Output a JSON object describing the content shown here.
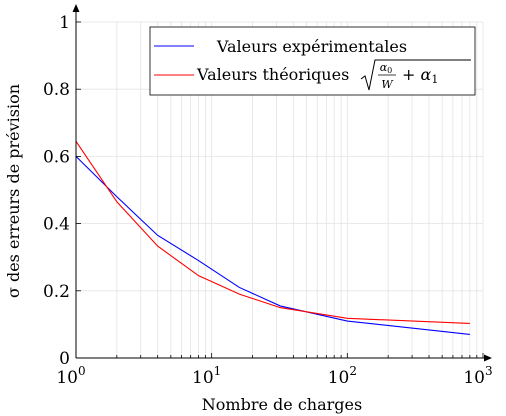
{
  "chart_data": {
    "type": "line",
    "xlabel": "Nombre de charges",
    "ylabel": "σ des erreurs de prévision",
    "xscale": "log",
    "xlim": [
      1,
      1000
    ],
    "ylim": [
      0,
      1
    ],
    "grid": true,
    "legend_position": "top-right",
    "x_ticks": [
      {
        "value": 1,
        "base": "10",
        "exp": "0"
      },
      {
        "value": 10,
        "base": "10",
        "exp": "1"
      },
      {
        "value": 100,
        "base": "10",
        "exp": "2"
      },
      {
        "value": 1000,
        "base": "10",
        "exp": "3"
      }
    ],
    "y_ticks": [
      {
        "value": 0,
        "label": "0"
      },
      {
        "value": 0.2,
        "label": "0.2"
      },
      {
        "value": 0.4,
        "label": "0.4"
      },
      {
        "value": 0.6,
        "label": "0.6"
      },
      {
        "value": 0.8,
        "label": "0.8"
      },
      {
        "value": 1,
        "label": "1"
      }
    ],
    "series": [
      {
        "name": "Valeurs expérimentales",
        "color": "#0000ff",
        "x": [
          1,
          2,
          4,
          8,
          16,
          32,
          100,
          800
        ],
        "y": [
          0.6,
          0.48,
          0.365,
          0.29,
          0.21,
          0.155,
          0.11,
          0.07
        ]
      },
      {
        "name": "Valeurs théoriques",
        "formula": "√(α₀/W + α₁)",
        "color": "#ff0000",
        "x": [
          1,
          2,
          4,
          8,
          16,
          32,
          100,
          800
        ],
        "y": [
          0.645,
          0.465,
          0.333,
          0.245,
          0.19,
          0.15,
          0.118,
          0.103
        ]
      }
    ]
  }
}
